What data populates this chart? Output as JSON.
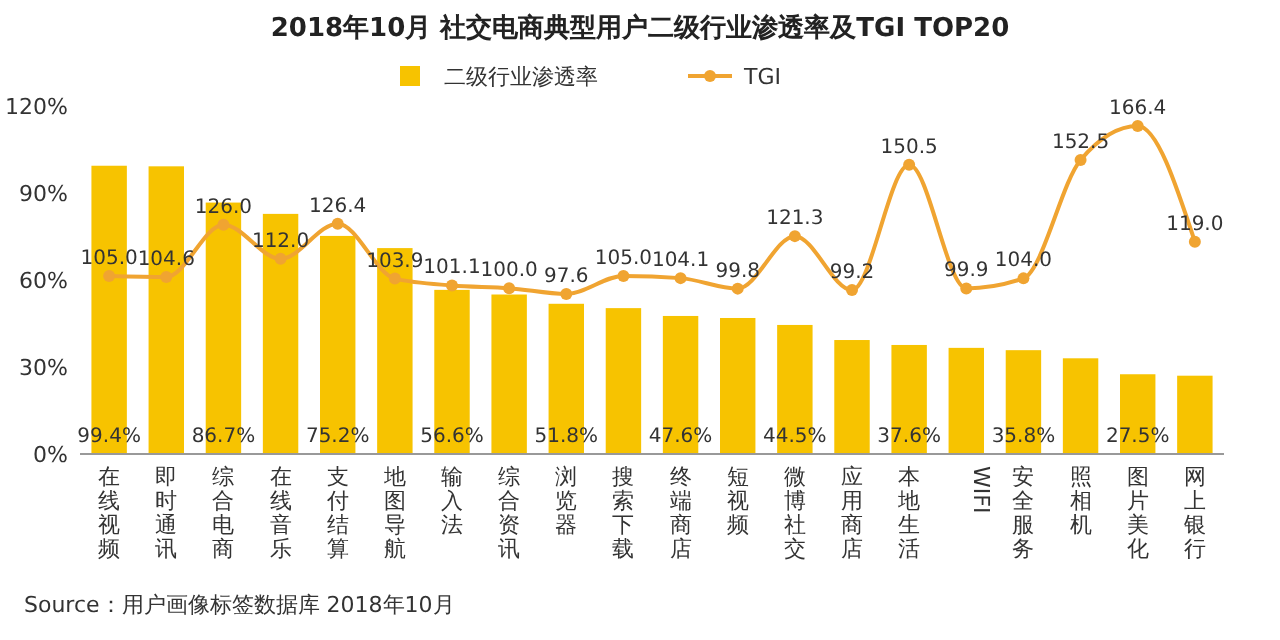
{
  "chart_data": {
    "type": "bar",
    "title": "2018年10月 社交电商典型用户二级行业渗透率及TGI TOP20",
    "categories": [
      "在线视频",
      "即时通讯",
      "综合电商",
      "在线音乐",
      "支付结算",
      "地图导航",
      "输入法",
      "综合资讯",
      "浏览器",
      "搜索下载",
      "终端商店",
      "短视频",
      "微博社交",
      "应用商店",
      "本地生活",
      "WIFI",
      "安全服务",
      "照相机",
      "图片美化",
      "网上银行"
    ],
    "series": [
      {
        "name": "二级行业渗透率",
        "color": "#f7c300",
        "values": [
          99.4,
          99.2,
          86.7,
          82.8,
          75.2,
          71.0,
          56.6,
          55.0,
          51.8,
          50.3,
          47.6,
          46.9,
          44.5,
          39.3,
          37.6,
          36.6,
          35.8,
          33.0,
          27.5,
          27.0
        ],
        "value_labels": [
          "99.4%",
          null,
          "86.7%",
          null,
          "75.2%",
          null,
          "56.6%",
          null,
          "51.8%",
          null,
          "47.6%",
          null,
          "44.5%",
          null,
          "37.6%",
          null,
          "35.8%",
          null,
          "27.5%",
          null
        ]
      },
      {
        "name": "TGI",
        "type": "line",
        "axis": "y2",
        "color": "#f0a431",
        "values": [
          105.0,
          104.6,
          126.0,
          112.0,
          126.4,
          103.9,
          101.1,
          100.0,
          97.6,
          105.0,
          104.1,
          99.8,
          121.3,
          99.2,
          150.5,
          99.9,
          104.0,
          152.5,
          166.4,
          119.0
        ],
        "value_labels": [
          "105.0",
          "104.6",
          "126.0",
          "112.0",
          "126.4",
          "103.9",
          "101.1",
          "100.0",
          "97.6",
          "105.0",
          "104.1",
          "99.8",
          "121.3",
          "99.2",
          "150.5",
          "99.9",
          "104.0",
          "152.5",
          "166.4",
          "119.0"
        ]
      }
    ],
    "ylim": [
      0,
      120
    ],
    "yticks": [
      {
        "value": 0,
        "label": "0%"
      },
      {
        "value": 30,
        "label": "30%"
      },
      {
        "value": 60,
        "label": "60%"
      },
      {
        "value": 90,
        "label": "90%"
      },
      {
        "value": 120,
        "label": "120%"
      }
    ],
    "tick_labels": "y",
    "marker": "circle",
    "legend": "top",
    "grid": false,
    "annotations": [
      "Source：用户画像标签数据库 2018年10月"
    ]
  }
}
